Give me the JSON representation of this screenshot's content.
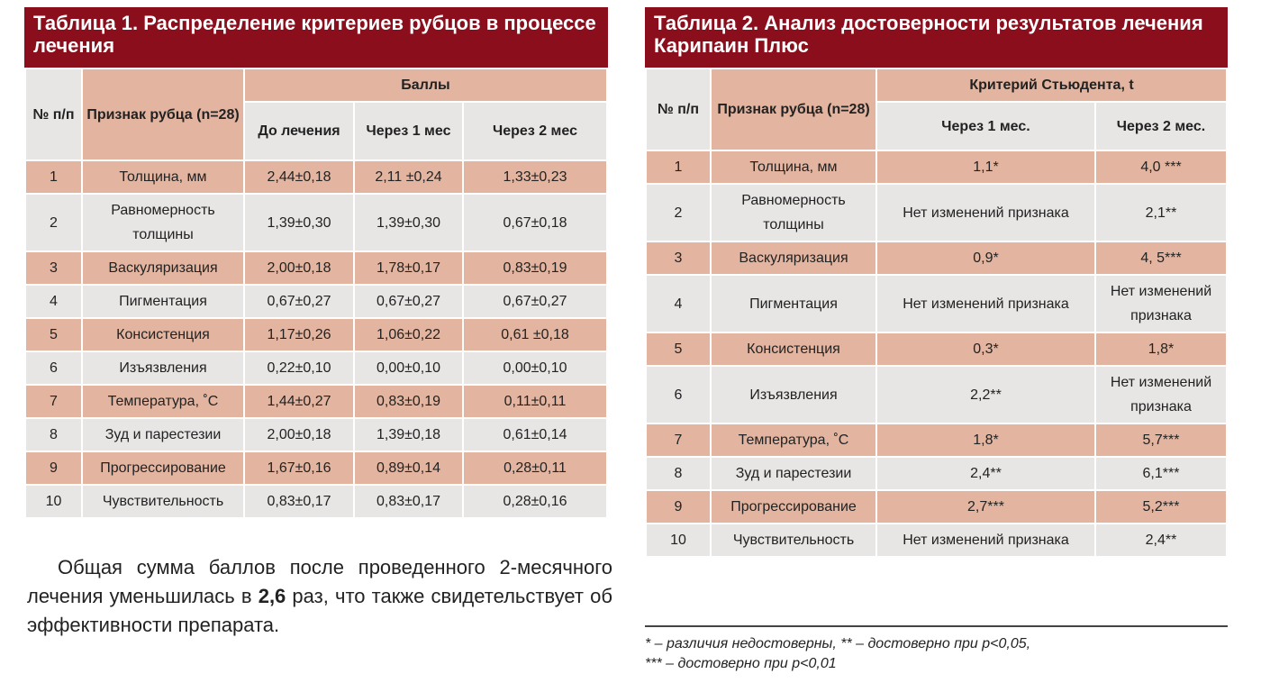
{
  "table1": {
    "title": "Таблица 1. Распределение критериев рубцов в процессе лечения",
    "headers": {
      "num": "№ п/п",
      "sign": "Признак рубца (n=28)",
      "group": "Баллы",
      "before": "До лечения",
      "m1": "Через 1 мес",
      "m2": "Через 2 мес"
    },
    "rows": [
      {
        "n": "1",
        "name": "Толщина, мм",
        "before": "2,44±0,18",
        "m1": "2,11 ±0,24",
        "m2": "1,33±0,23"
      },
      {
        "n": "2",
        "name": "Равномерность толщины",
        "before": "1,39±0,30",
        "m1": "1,39±0,30",
        "m2": "0,67±0,18"
      },
      {
        "n": "3",
        "name": "Васкуляризация",
        "before": "2,00±0,18",
        "m1": "1,78±0,17",
        "m2": "0,83±0,19"
      },
      {
        "n": "4",
        "name": "Пигментация",
        "before": "0,67±0,27",
        "m1": "0,67±0,27",
        "m2": "0,67±0,27"
      },
      {
        "n": "5",
        "name": "Консистенция",
        "before": "1,17±0,26",
        "m1": "1,06±0,22",
        "m2": "0,61 ±0,18"
      },
      {
        "n": "6",
        "name": "Изъязвления",
        "before": "0,22±0,10",
        "m1": "0,00±0,10",
        "m2": "0,00±0,10"
      },
      {
        "n": "7",
        "name": "Температура, ˚С",
        "before": "1,44±0,27",
        "m1": "0,83±0,19",
        "m2": "0,11±0,11"
      },
      {
        "n": "8",
        "name": "Зуд и парестезии",
        "before": "2,00±0,18",
        "m1": "1,39±0,18",
        "m2": "0,61±0,14"
      },
      {
        "n": "9",
        "name": "Прогрессирование",
        "before": "1,67±0,16",
        "m1": "0,89±0,14",
        "m2": "0,28±0,11"
      },
      {
        "n": "10",
        "name": "Чувствительность",
        "before": "0,83±0,17",
        "m1": "0,83±0,17",
        "m2": "0,28±0,16"
      }
    ]
  },
  "paragraph": {
    "pre": "Общая сумма баллов после проведенного 2-месячного лечения уменьшилась в ",
    "bold": "2,6",
    "post": " раз, что также свидетельствует об эффективности препарата."
  },
  "table2": {
    "title": "Таблица 2. Анализ достоверности результатов лечения Карипаин Плюс",
    "headers": {
      "num": "№ п/п",
      "sign": "Признак рубца (n=28)",
      "group": "Критерий Стьюдента, t",
      "m1": "Через 1 мес.",
      "m2": "Через 2 мес."
    },
    "rows": [
      {
        "n": "1",
        "name": "Толщина, мм",
        "m1": "1,1*",
        "m2": "4,0 ***"
      },
      {
        "n": "2",
        "name": "Равномерность толщины",
        "m1": "Нет изменений признака",
        "m2": "2,1**"
      },
      {
        "n": "3",
        "name": "Васкуляризация",
        "m1": "0,9*",
        "m2": "4, 5***"
      },
      {
        "n": "4",
        "name": "Пигментация",
        "m1": "Нет изменений признака",
        "m2": "Нет изменений признака"
      },
      {
        "n": "5",
        "name": "Консистенция",
        "m1": "0,3*",
        "m2": "1,8*"
      },
      {
        "n": "6",
        "name": "Изъязвления",
        "m1": "2,2**",
        "m2": "Нет изменений признака"
      },
      {
        "n": "7",
        "name": "Температура, ˚С",
        "m1": "1,8*",
        "m2": "5,7***"
      },
      {
        "n": "8",
        "name": "Зуд и парестезии",
        "m1": "2,4**",
        "m2": "6,1***"
      },
      {
        "n": "9",
        "name": "Прогрессирование",
        "m1": "2,7***",
        "m2": "5,2***"
      },
      {
        "n": "10",
        "name": "Чувствительность",
        "m1": "Нет изменений признака",
        "m2": "2,4**"
      }
    ],
    "footnote1": "* – различия недостоверны, ** – достоверно при p<0,05,",
    "footnote2": "*** – достоверно при p<0,01"
  },
  "colors": {
    "title_bg": "#8b0e1c",
    "salmon": "#e3b5a0",
    "grey": "#e8e6e5"
  }
}
